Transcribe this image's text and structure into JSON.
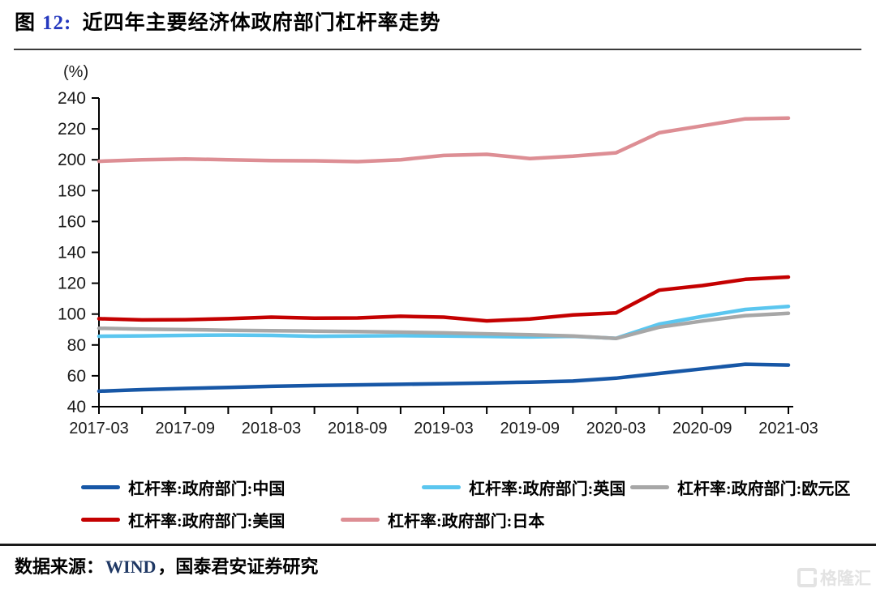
{
  "figure": {
    "fig_label": "图",
    "fig_num": "12:",
    "title": "近四年主要经济体政府部门杠杆率走势"
  },
  "footer": {
    "source_label": "数据来源：",
    "wind": "WIND",
    "rest": "，国泰君安证券研究"
  },
  "watermark": {
    "text": "格隆汇"
  },
  "chart_data": {
    "type": "line",
    "unit_label": "(%)",
    "x": [
      "2017-03",
      "2017-06",
      "2017-09",
      "2017-12",
      "2018-03",
      "2018-06",
      "2018-09",
      "2018-12",
      "2019-03",
      "2019-06",
      "2019-09",
      "2019-12",
      "2020-03",
      "2020-06",
      "2020-09",
      "2020-12",
      "2021-03"
    ],
    "x_tick_labels": [
      "2017-03",
      "2017-09",
      "2018-03",
      "2018-09",
      "2019-03",
      "2019-09",
      "2020-03",
      "2020-09",
      "2021-03"
    ],
    "ylim": [
      40,
      240
    ],
    "y_tick_step": 20,
    "grid": false,
    "legend_position": "bottom",
    "series": [
      {
        "key": "china",
        "name": "杠杆率:政府部门:中国",
        "color": "#1757A6",
        "values": [
          50.0,
          51.0,
          51.8,
          52.5,
          53.2,
          53.7,
          54.1,
          54.5,
          54.9,
          55.4,
          55.9,
          56.6,
          58.5,
          61.5,
          64.5,
          67.5,
          67.0
        ]
      },
      {
        "key": "uk",
        "name": "杠杆率:政府部门:英国",
        "color": "#5BC6EF",
        "values": [
          85.6,
          85.9,
          86.2,
          86.4,
          86.2,
          85.6,
          85.8,
          86.0,
          85.8,
          85.5,
          85.2,
          85.6,
          84.3,
          93.5,
          98.5,
          103.0,
          105.0
        ]
      },
      {
        "key": "eurozone",
        "name": "杠杆率:政府部门:欧元区",
        "color": "#A7A7A7",
        "values": [
          90.8,
          90.3,
          89.9,
          89.5,
          89.2,
          89.0,
          88.7,
          88.3,
          87.8,
          87.2,
          86.6,
          85.8,
          84.2,
          91.5,
          95.5,
          99.0,
          100.5
        ]
      },
      {
        "key": "us",
        "name": "杠杆率:政府部门:美国",
        "color": "#C40000",
        "values": [
          97.0,
          96.2,
          96.4,
          97.0,
          98.0,
          97.3,
          97.5,
          98.6,
          98.0,
          95.6,
          96.8,
          99.5,
          100.8,
          115.5,
          118.5,
          122.5,
          124.0
        ]
      },
      {
        "key": "japan",
        "name": "杠杆率:政府部门:日本",
        "color": "#DD8E94",
        "values": [
          199.0,
          200.0,
          200.5,
          200.0,
          199.5,
          199.3,
          198.8,
          200.0,
          202.8,
          203.5,
          200.8,
          202.3,
          204.5,
          217.5,
          222.0,
          226.5,
          227.0
        ]
      }
    ]
  }
}
